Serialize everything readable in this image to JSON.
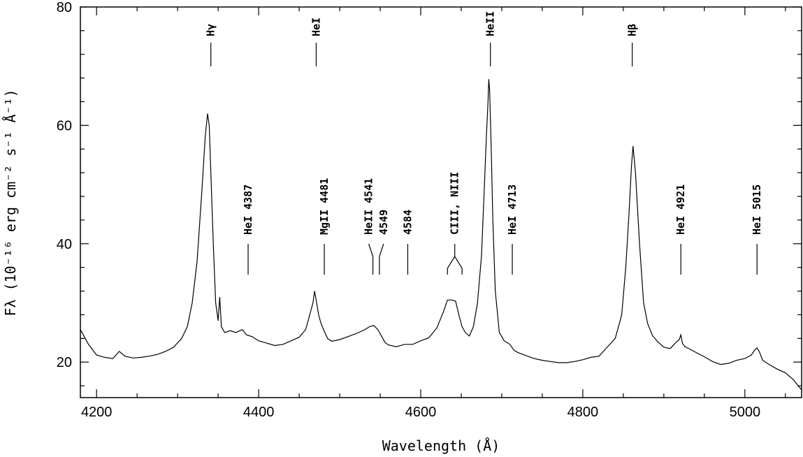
{
  "chart_data": {
    "type": "line",
    "xlabel": "Wavelength (Å)",
    "ylabel": "Fλ (10⁻¹⁶ erg cm⁻² s⁻¹ Å⁻¹)",
    "xlim": [
      4180,
      5070
    ],
    "ylim": [
      14,
      80
    ],
    "x_ticks": [
      4200,
      4400,
      4600,
      4800,
      5000
    ],
    "y_ticks": [
      20,
      40,
      60,
      80
    ],
    "grid": false,
    "series": [
      {
        "x": [
          4180,
          4190,
          4200,
          4210,
          4220,
          4228,
          4235,
          4245,
          4255,
          4265,
          4275,
          4285,
          4295,
          4305,
          4312,
          4318,
          4324,
          4330,
          4334,
          4337,
          4339,
          4341,
          4344,
          4347,
          4350,
          4352,
          4354,
          4358,
          4365,
          4372,
          4380,
          4385,
          4392,
          4400,
          4410,
          4420,
          4430,
          4440,
          4450,
          4458,
          4463,
          4467,
          4469,
          4471,
          4474,
          4477,
          4480,
          4485,
          4490,
          4500,
          4510,
          4520,
          4530,
          4537,
          4542,
          4547,
          4552,
          4556,
          4560,
          4570,
          4580,
          4590,
          4600,
          4610,
          4620,
          4628,
          4633,
          4638,
          4643,
          4647,
          4651,
          4655,
          4660,
          4665,
          4670,
          4675,
          4678,
          4681,
          4683,
          4684,
          4685,
          4687,
          4689,
          4692,
          4697,
          4703,
          4710,
          4715,
          4720,
          4730,
          4740,
          4750,
          4760,
          4770,
          4780,
          4790,
          4800,
          4810,
          4820,
          4830,
          4840,
          4848,
          4853,
          4857,
          4860,
          4862,
          4865,
          4870,
          4875,
          4880,
          4886,
          4892,
          4900,
          4908,
          4914,
          4919,
          4921,
          4923,
          4926,
          4932,
          4940,
          4950,
          4960,
          4970,
          4980,
          4990,
          5000,
          5008,
          5012,
          5015,
          5018,
          5022,
          5030,
          5040,
          5050,
          5060,
          5070
        ],
        "y": [
          25.5,
          23,
          21.2,
          20.8,
          20.6,
          21.8,
          21,
          20.7,
          20.8,
          21,
          21.3,
          21.8,
          22.5,
          24,
          26,
          30,
          37,
          49,
          58,
          62,
          60,
          52,
          40,
          30,
          27,
          31,
          26,
          25,
          25.3,
          25,
          25.5,
          24.6,
          24.3,
          23.6,
          23.2,
          22.8,
          23,
          23.6,
          24.2,
          25.5,
          28,
          30,
          32,
          30.5,
          28,
          26.5,
          25.5,
          24,
          23.5,
          23.8,
          24.3,
          24.8,
          25.4,
          26,
          26.2,
          25.5,
          24.3,
          23.3,
          22.9,
          22.6,
          23,
          23,
          23.6,
          24.1,
          25.8,
          28.5,
          30.5,
          30.5,
          30.3,
          28,
          26,
          25,
          24.4,
          26,
          30,
          38,
          48,
          58,
          64,
          67.8,
          66,
          56,
          44,
          32,
          25,
          23.6,
          23,
          22,
          21.6,
          21.1,
          20.6,
          20.3,
          20.1,
          19.9,
          19.9,
          20.1,
          20.4,
          20.8,
          21,
          22.5,
          24,
          28,
          36,
          45,
          53,
          56.5,
          52,
          40,
          30,
          26.5,
          24.5,
          23.5,
          22.5,
          22.3,
          23.2,
          23.8,
          24.6,
          23.2,
          22.6,
          22.2,
          21.6,
          20.9,
          20.1,
          19.6,
          19.8,
          20.3,
          20.6,
          21.2,
          22,
          22.4,
          21.7,
          20.3,
          19.6,
          18.8,
          18.2,
          17,
          15.3
        ]
      }
    ],
    "annotations": [
      {
        "label": "Hγ",
        "wavelength": 4341,
        "level": "upper"
      },
      {
        "label": "HeI",
        "wavelength": 4471,
        "level": "upper"
      },
      {
        "label": "HeII",
        "wavelength": 4686,
        "level": "upper"
      },
      {
        "label": "Hβ",
        "wavelength": 4861,
        "level": "upper"
      },
      {
        "label": "HeI 4387",
        "wavelength": 4387,
        "level": "lower"
      },
      {
        "label": "MgII 4481",
        "wavelength": 4481,
        "level": "lower"
      },
      {
        "label": "HeII 4541",
        "wavelength": 4541,
        "level": "lower-split"
      },
      {
        "label": "4549",
        "wavelength": 4549,
        "level": "lower-split"
      },
      {
        "label": "4584",
        "wavelength": 4584,
        "level": "lower"
      },
      {
        "label": "CIII, NIII",
        "wavelength": 4642,
        "level": "lower-fork"
      },
      {
        "label": "HeI 4713",
        "wavelength": 4713,
        "level": "lower"
      },
      {
        "label": "HeI 4921",
        "wavelength": 4921,
        "level": "lower"
      },
      {
        "label": "HeI 5015",
        "wavelength": 5015,
        "level": "lower"
      }
    ]
  }
}
